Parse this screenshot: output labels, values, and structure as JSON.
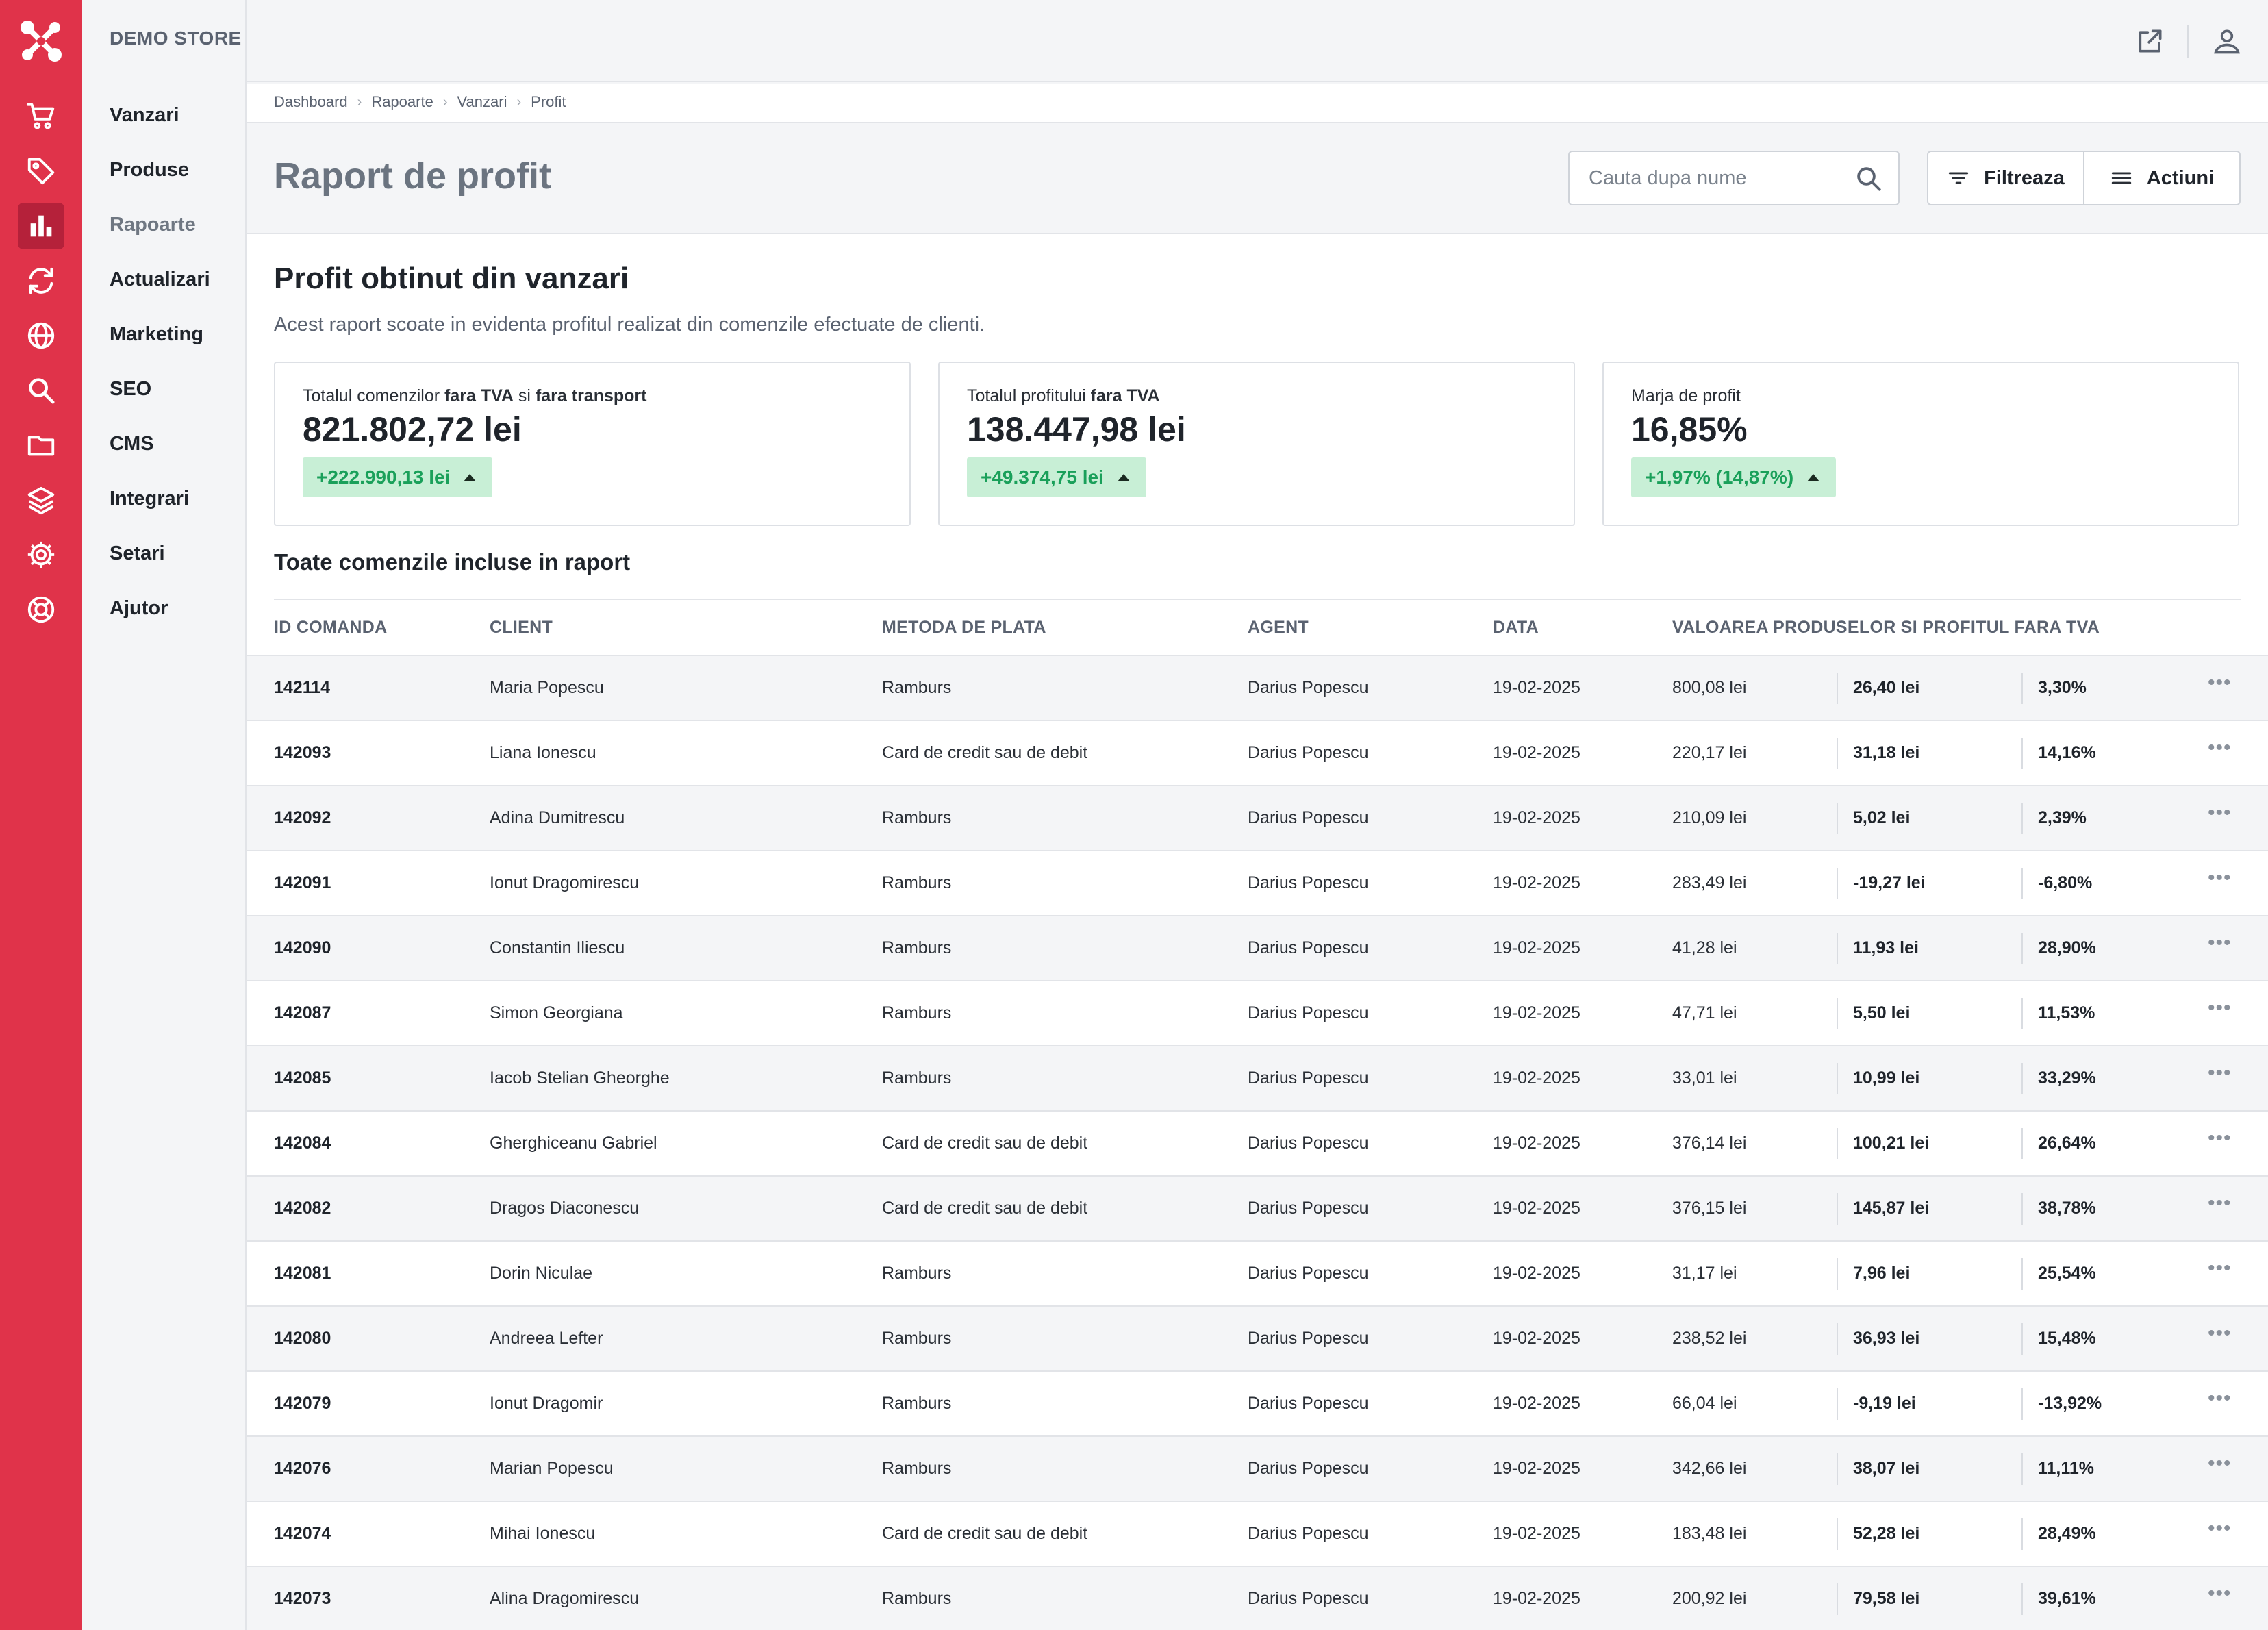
{
  "app": {
    "store_name": "DEMO STORE"
  },
  "rail": {
    "icons": [
      "network-logo-icon",
      "cart-icon",
      "tag-icon",
      "bar-chart-icon",
      "sync-icon",
      "globe-icon",
      "search-icon",
      "folder-icon",
      "layers-icon",
      "gear-icon",
      "lifebuoy-icon"
    ],
    "active": "bar-chart-icon",
    "accent": "#e0334a"
  },
  "nav": {
    "items": [
      {
        "label": "Vanzari"
      },
      {
        "label": "Produse"
      },
      {
        "label": "Rapoarte"
      },
      {
        "label": "Actualizari"
      },
      {
        "label": "Marketing"
      },
      {
        "label": "SEO"
      },
      {
        "label": "CMS"
      },
      {
        "label": "Integrari"
      },
      {
        "label": "Setari"
      },
      {
        "label": "Ajutor"
      }
    ],
    "active": "Rapoarte"
  },
  "topbar": {
    "icons": [
      "external-link-icon",
      "user-icon"
    ]
  },
  "breadcrumb": [
    "Dashboard",
    "Rapoarte",
    "Vanzari",
    "Profit"
  ],
  "header": {
    "title": "Raport de profit",
    "search_placeholder": "Cauta dupa nume",
    "filter_label": "Filtreaza",
    "actions_label": "Actiuni"
  },
  "report": {
    "title": "Profit obtinut din vanzari",
    "description": "Acest raport scoate in evidenta profitul realizat din comenzile efectuate de clienti.",
    "cards": [
      {
        "label_a": "Totalul comenzilor ",
        "label_b": "fara TVA",
        "label_c": " si ",
        "label_d": "fara transport",
        "value": "821.802,72 lei",
        "delta": "+222.990,13 lei"
      },
      {
        "label_a": "Totalul profitului ",
        "label_b": "fara TVA",
        "label_c": "",
        "label_d": "",
        "value": "138.447,98 lei",
        "delta": "+49.374,75 lei"
      },
      {
        "label_a": "Marja de profit",
        "label_b": "",
        "label_c": "",
        "label_d": "",
        "value": "16,85%",
        "delta": "+1,97% (14,87%)"
      }
    ],
    "positive_color": "#1aa05a"
  },
  "table": {
    "title": "Toate comenzile incluse in raport",
    "columns": [
      "ID COMANDA",
      "CLIENT",
      "METODA DE PLATA",
      "AGENT",
      "DATA",
      "VALOAREA PRODUSELOR SI PROFITUL FARA TVA"
    ],
    "rows": [
      {
        "id": "142114",
        "client": "Maria Popescu",
        "payment": "Ramburs",
        "agent": "Darius Popescu",
        "date": "19-02-2025",
        "value": "800,08 lei",
        "profit": "26,40 lei",
        "margin": "3,30%"
      },
      {
        "id": "142093",
        "client": "Liana Ionescu",
        "payment": "Card de credit sau de debit",
        "agent": "Darius Popescu",
        "date": "19-02-2025",
        "value": "220,17 lei",
        "profit": "31,18 lei",
        "margin": "14,16%"
      },
      {
        "id": "142092",
        "client": "Adina Dumitrescu",
        "payment": "Ramburs",
        "agent": "Darius Popescu",
        "date": "19-02-2025",
        "value": "210,09 lei",
        "profit": "5,02 lei",
        "margin": "2,39%"
      },
      {
        "id": "142091",
        "client": "Ionut Dragomirescu",
        "payment": "Ramburs",
        "agent": "Darius Popescu",
        "date": "19-02-2025",
        "value": "283,49 lei",
        "profit": "-19,27 lei",
        "margin": "-6,80%"
      },
      {
        "id": "142090",
        "client": "Constantin Iliescu",
        "payment": "Ramburs",
        "agent": "Darius Popescu",
        "date": "19-02-2025",
        "value": "41,28 lei",
        "profit": "11,93 lei",
        "margin": "28,90%"
      },
      {
        "id": "142087",
        "client": "Simon Georgiana",
        "payment": "Ramburs",
        "agent": "Darius Popescu",
        "date": "19-02-2025",
        "value": "47,71 lei",
        "profit": "5,50 lei",
        "margin": "11,53%"
      },
      {
        "id": "142085",
        "client": "Iacob Stelian Gheorghe",
        "payment": "Ramburs",
        "agent": "Darius Popescu",
        "date": "19-02-2025",
        "value": "33,01 lei",
        "profit": "10,99 lei",
        "margin": "33,29%"
      },
      {
        "id": "142084",
        "client": "Gherghiceanu Gabriel",
        "payment": "Card de credit sau de debit",
        "agent": "Darius Popescu",
        "date": "19-02-2025",
        "value": "376,14 lei",
        "profit": "100,21 lei",
        "margin": "26,64%"
      },
      {
        "id": "142082",
        "client": "Dragos Diaconescu",
        "payment": "Card de credit sau de debit",
        "agent": "Darius Popescu",
        "date": "19-02-2025",
        "value": "376,15 lei",
        "profit": "145,87 lei",
        "margin": "38,78%"
      },
      {
        "id": "142081",
        "client": "Dorin Niculae",
        "payment": "Ramburs",
        "agent": "Darius Popescu",
        "date": "19-02-2025",
        "value": "31,17 lei",
        "profit": "7,96 lei",
        "margin": "25,54%"
      },
      {
        "id": "142080",
        "client": "Andreea Lefter",
        "payment": "Ramburs",
        "agent": "Darius Popescu",
        "date": "19-02-2025",
        "value": "238,52 lei",
        "profit": "36,93 lei",
        "margin": "15,48%"
      },
      {
        "id": "142079",
        "client": "Ionut Dragomir",
        "payment": "Ramburs",
        "agent": "Darius Popescu",
        "date": "19-02-2025",
        "value": "66,04 lei",
        "profit": "-9,19 lei",
        "margin": "-13,92%"
      },
      {
        "id": "142076",
        "client": "Marian Popescu",
        "payment": "Ramburs",
        "agent": "Darius Popescu",
        "date": "19-02-2025",
        "value": "342,66 lei",
        "profit": "38,07 lei",
        "margin": "11,11%"
      },
      {
        "id": "142074",
        "client": "Mihai Ionescu",
        "payment": "Card de credit sau de debit",
        "agent": "Darius Popescu",
        "date": "19-02-2025",
        "value": "183,48 lei",
        "profit": "52,28 lei",
        "margin": "28,49%"
      },
      {
        "id": "142073",
        "client": "Alina Dragomirescu",
        "payment": "Ramburs",
        "agent": "Darius Popescu",
        "date": "19-02-2025",
        "value": "200,92 lei",
        "profit": "79,58 lei",
        "margin": "39,61%"
      }
    ]
  }
}
